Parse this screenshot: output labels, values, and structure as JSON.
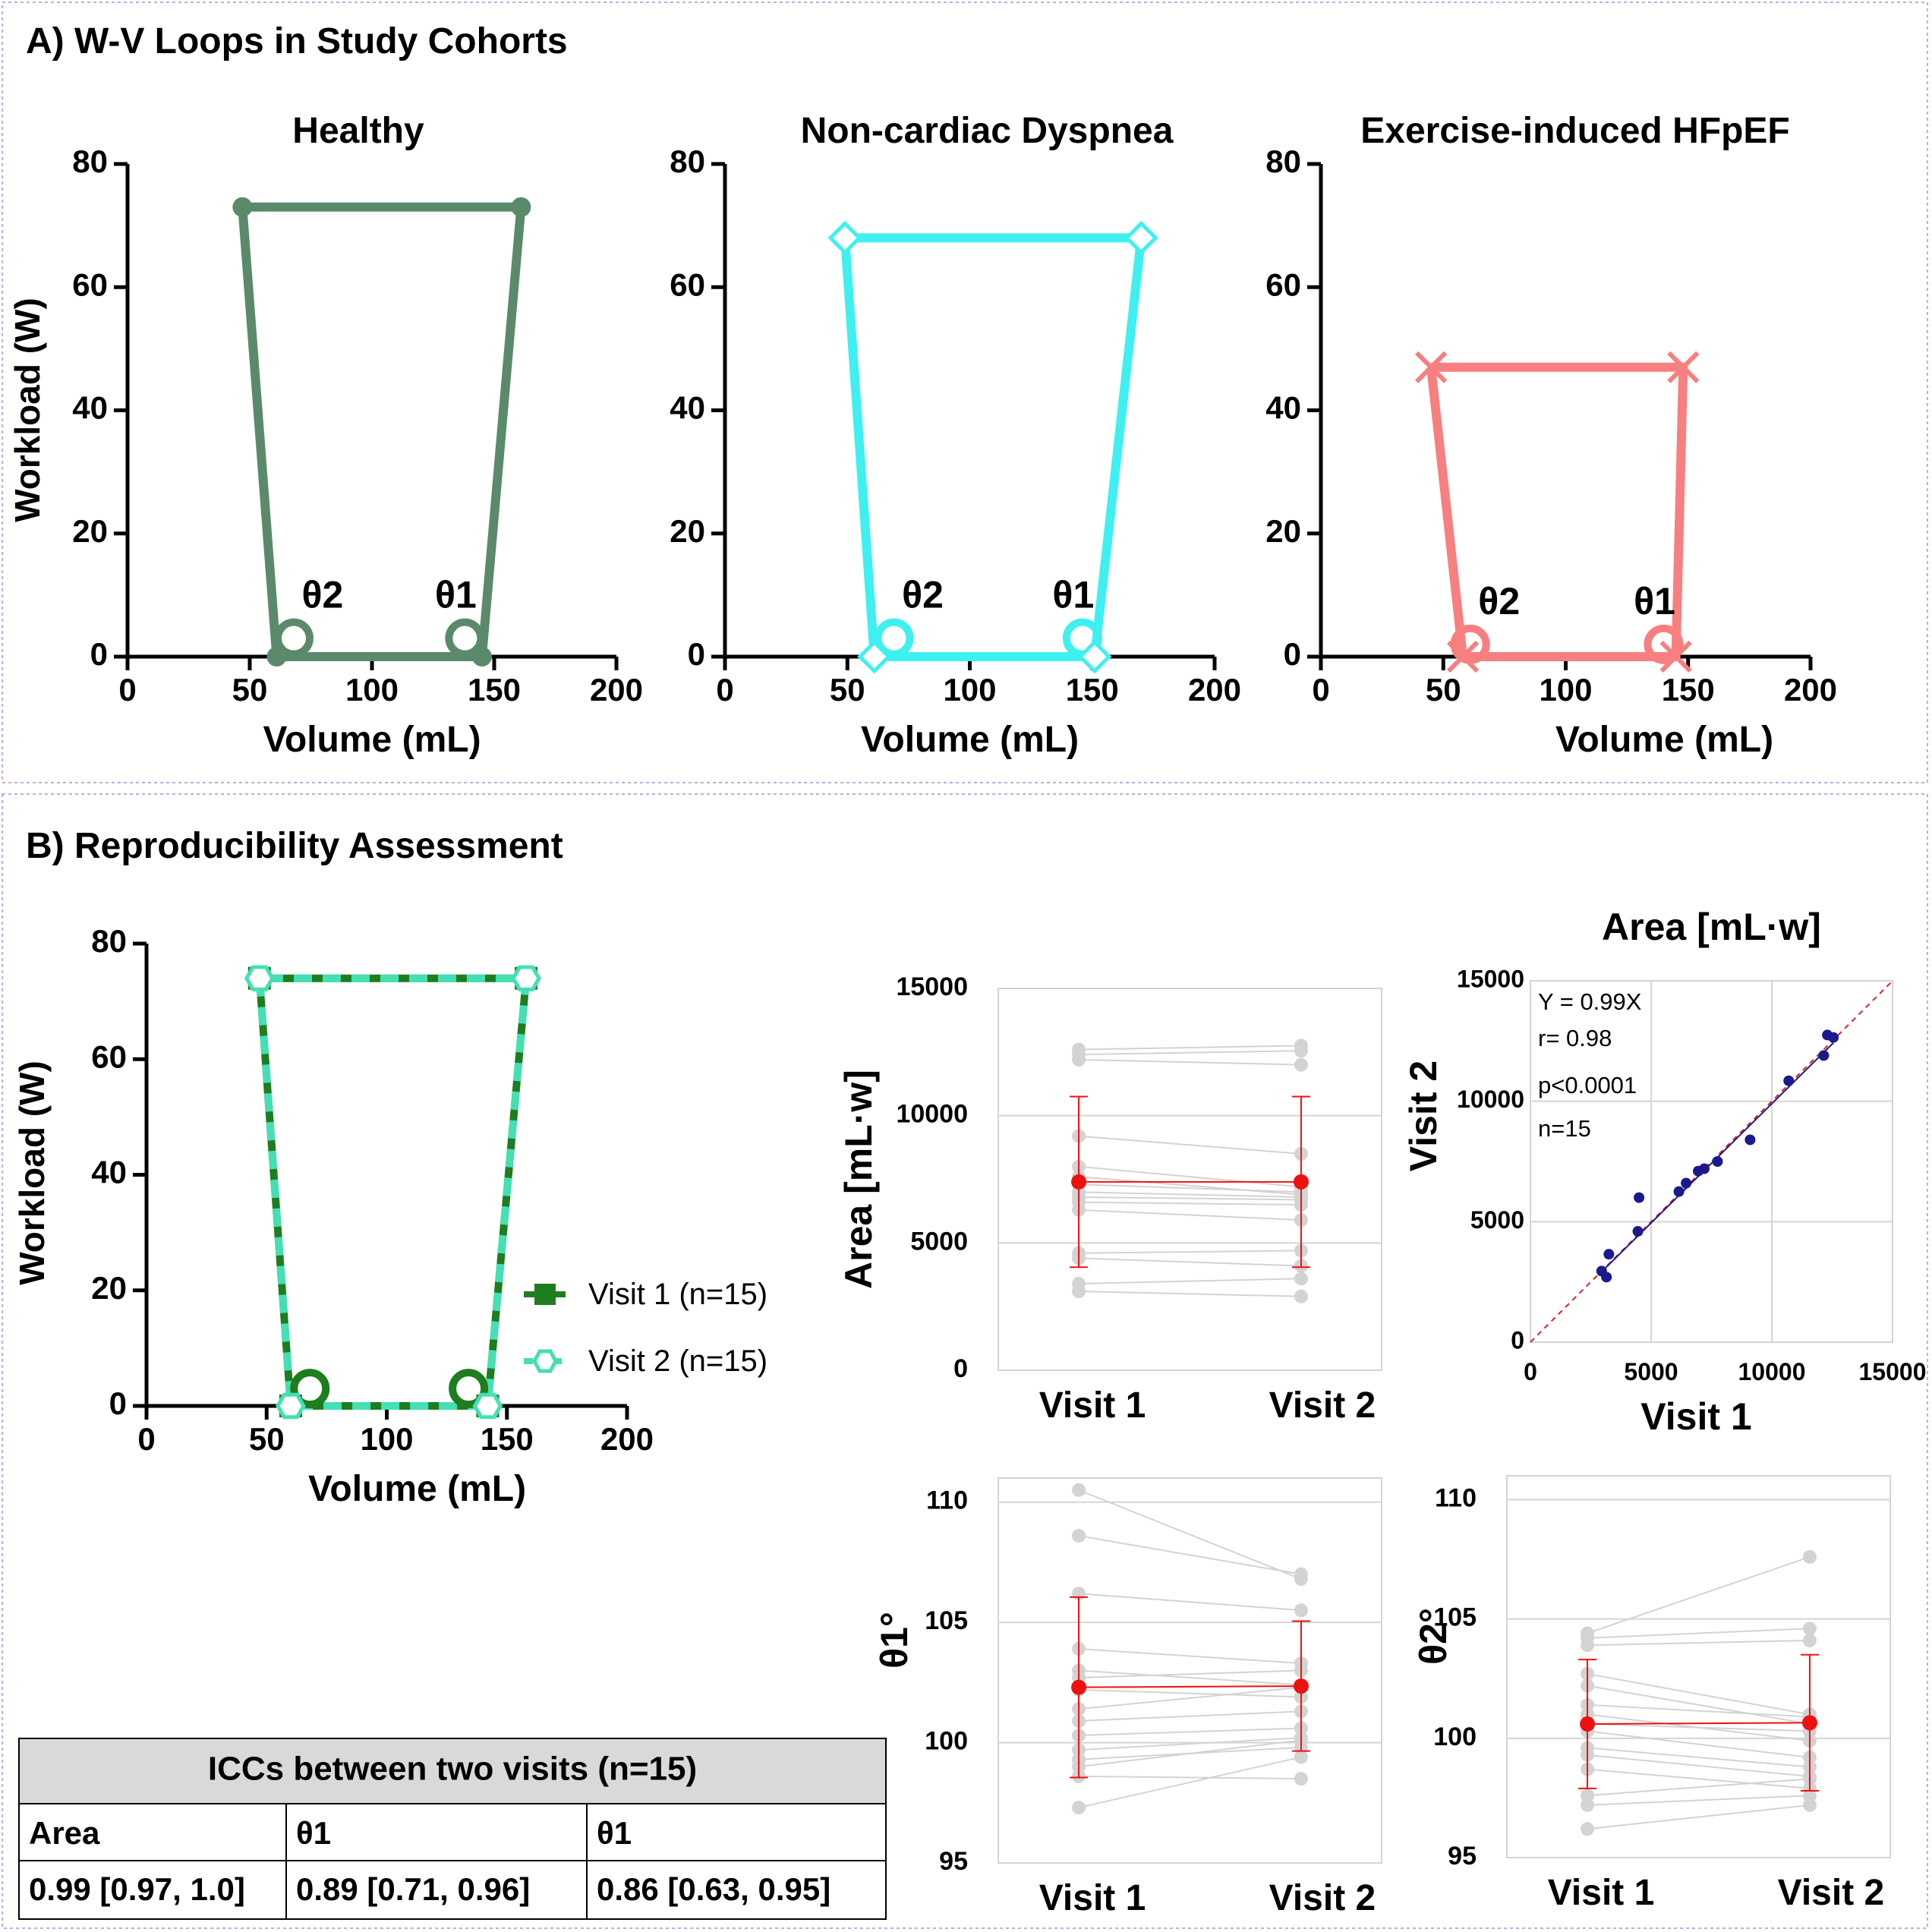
{
  "panel_a": {
    "title": "A) W-V Loops in Study Cohorts",
    "ylabel": "Workload (W)",
    "xlabel": "Volume (mL)",
    "theta1_label": "θ1",
    "theta2_label": "θ2"
  },
  "panel_b": {
    "title": "B) Reproducibility Assessment",
    "ylabel": "Workload (W)",
    "xlabel": "Volume (mL)"
  },
  "icc_table": {
    "title": "ICCs between two visits (n=15)",
    "headers": [
      "Area",
      "θ1",
      "θ1"
    ],
    "values": [
      "0.99 [0.97, 1.0]",
      "0.89 [0.71, 0.96]",
      "0.86 [0.63, 0.95]"
    ]
  },
  "colors": {
    "healthy": "#5b8a6b",
    "noncardiac": "#3ff0f0",
    "hfpef": "#f87f7f",
    "visit1": "#1e7d1e",
    "visit2": "#44e0b4",
    "paired_lines": "#d3d3d3",
    "mean_sd": "#ee1111",
    "scatter_points": "#1a1a8c",
    "identity_line": "#dd2222",
    "grid": "#d4d4d4"
  },
  "chart_data": [
    {
      "id": "loop-healthy",
      "type": "line",
      "title": "Healthy",
      "xlabel": "Volume (mL)",
      "ylabel": "Workload (W)",
      "xlim": [
        0,
        200
      ],
      "ylim": [
        0,
        80
      ],
      "xticks": [
        0,
        50,
        100,
        150,
        200
      ],
      "yticks": [
        0,
        20,
        40,
        60,
        80
      ],
      "marker": "circle",
      "series": [
        {
          "x": [
            47,
            61,
            145,
            161,
            47
          ],
          "y": [
            73,
            0,
            0,
            73,
            73
          ]
        }
      ],
      "angles": [
        {
          "label": "θ2",
          "x": 68,
          "y": 3
        },
        {
          "label": "θ1",
          "x": 138,
          "y": 3
        }
      ]
    },
    {
      "id": "loop-noncardiac",
      "type": "line",
      "title": "Non-cardiac Dyspnea",
      "xlabel": "Volume (mL)",
      "ylabel": "",
      "xlim": [
        0,
        200
      ],
      "ylim": [
        0,
        80
      ],
      "xticks": [
        0,
        50,
        100,
        150,
        200
      ],
      "yticks": [
        0,
        20,
        40,
        60,
        80
      ],
      "marker": "diamond",
      "series": [
        {
          "x": [
            49,
            61,
            151,
            170,
            49
          ],
          "y": [
            68,
            0,
            0,
            68,
            68
          ]
        }
      ],
      "angles": [
        {
          "label": "θ2",
          "x": 69,
          "y": 3
        },
        {
          "label": "θ1",
          "x": 146,
          "y": 3
        }
      ]
    },
    {
      "id": "loop-hfpef",
      "type": "line",
      "title": "Exercise-induced HFpEF",
      "xlabel": "Volume (mL)",
      "ylabel": "",
      "xlim": [
        0,
        200
      ],
      "ylim": [
        0,
        80
      ],
      "xticks": [
        0,
        50,
        100,
        150,
        200
      ],
      "yticks": [
        0,
        20,
        40,
        60,
        80
      ],
      "marker": "x",
      "series": [
        {
          "x": [
            45,
            58,
            145,
            148,
            45
          ],
          "y": [
            47,
            0,
            0,
            47,
            47
          ]
        }
      ],
      "angles": [
        {
          "label": "θ2",
          "x": 61,
          "y": 2
        },
        {
          "label": "θ1",
          "x": 140,
          "y": 2
        }
      ]
    },
    {
      "id": "loop-visits",
      "type": "line",
      "title": "",
      "xlabel": "Volume (mL)",
      "ylabel": "Workload (W)",
      "xlim": [
        0,
        200
      ],
      "ylim": [
        0,
        80
      ],
      "xticks": [
        0,
        50,
        100,
        150,
        200
      ],
      "yticks": [
        0,
        20,
        40,
        60,
        80
      ],
      "legend_position": "right",
      "series": [
        {
          "name": "Visit 1 (n=15)",
          "marker": "square",
          "x": [
            47,
            60,
            142,
            158,
            47
          ],
          "y": [
            74,
            0,
            0,
            74,
            74
          ]
        },
        {
          "name": "Visit 2 (n=15)",
          "marker": "hexagon",
          "x": [
            47,
            60,
            142,
            158,
            47
          ],
          "y": [
            74,
            0,
            0,
            74,
            74
          ]
        }
      ],
      "angles": [
        {
          "x": 68,
          "y": 3
        },
        {
          "x": 134,
          "y": 3
        }
      ]
    },
    {
      "id": "area-paired",
      "type": "scatter",
      "title": "",
      "ylabel": "Area [mL·w]",
      "categories": [
        "Visit 1",
        "Visit 2"
      ],
      "ylim": [
        0,
        15000
      ],
      "yticks": [
        0,
        5000,
        10000,
        15000
      ],
      "pairs": [
        [
          12600,
          12750
        ],
        [
          12400,
          12550
        ],
        [
          12200,
          12000
        ],
        [
          9200,
          8500
        ],
        [
          8000,
          7200
        ],
        [
          7600,
          6900
        ],
        [
          7300,
          7000
        ],
        [
          7000,
          6800
        ],
        [
          6800,
          6700
        ],
        [
          6600,
          6500
        ],
        [
          6300,
          5900
        ],
        [
          4600,
          4700
        ],
        [
          4400,
          4100
        ],
        [
          3400,
          3600
        ],
        [
          3100,
          2900
        ]
      ],
      "mean": [
        7400,
        7400
      ],
      "sd": [
        3350,
        3350
      ]
    },
    {
      "id": "area-correlation",
      "type": "scatter",
      "title": "Area [mL·w]",
      "xlabel": "Visit 1",
      "ylabel": "Visit 2",
      "xlim": [
        0,
        15000
      ],
      "ylim": [
        0,
        15000
      ],
      "xticks": [
        0,
        5000,
        10000,
        15000
      ],
      "yticks": [
        0,
        5000,
        10000,
        15000
      ],
      "annotations": [
        "Y = 0.99X",
        "r= 0.98",
        "p<0.0001",
        "n=15"
      ],
      "slope": 0.99,
      "x": [
        2950,
        3150,
        3250,
        4450,
        4500,
        6150,
        6450,
        6950,
        7200,
        7750,
        9100,
        10700,
        12150,
        12300,
        12550
      ],
      "y": [
        2950,
        2700,
        3650,
        4600,
        6000,
        6250,
        6600,
        7100,
        7200,
        7500,
        8400,
        10850,
        11900,
        12750,
        12650
      ]
    },
    {
      "id": "theta1-paired",
      "type": "scatter",
      "title": "",
      "ylabel": "θ1°",
      "categories": [
        "Visit 1",
        "Visit 2"
      ],
      "ylim": [
        95,
        111
      ],
      "yticks": [
        95,
        100,
        105,
        110
      ],
      "pairs": [
        [
          110.5,
          106.8
        ],
        [
          108.6,
          107.0
        ],
        [
          106.2,
          105.5
        ],
        [
          103.9,
          103.3
        ],
        [
          103.0,
          102.4
        ],
        [
          102.7,
          103.0
        ],
        [
          102.2,
          101.9
        ],
        [
          101.4,
          102.3
        ],
        [
          100.9,
          101.3
        ],
        [
          100.3,
          100.6
        ],
        [
          99.7,
          100.2
        ],
        [
          99.3,
          99.8
        ],
        [
          99.0,
          100.1
        ],
        [
          98.6,
          98.5
        ],
        [
          97.3,
          99.4
        ]
      ],
      "mean": [
        102.3,
        102.35
      ],
      "sd": [
        3.75,
        2.7
      ]
    },
    {
      "id": "theta2-paired",
      "type": "scatter",
      "title": "",
      "ylabel": "θ2°",
      "categories": [
        "Visit 1",
        "Visit 2"
      ],
      "ylim": [
        95,
        111
      ],
      "yticks": [
        95,
        100,
        105,
        110
      ],
      "pairs": [
        [
          104.4,
          107.6
        ],
        [
          104.2,
          104.6
        ],
        [
          103.9,
          104.1
        ],
        [
          102.7,
          101.0
        ],
        [
          102.2,
          100.6
        ],
        [
          101.4,
          100.9
        ],
        [
          101.0,
          99.9
        ],
        [
          100.6,
          100.3
        ],
        [
          100.3,
          99.2
        ],
        [
          99.6,
          98.8
        ],
        [
          99.3,
          98.4
        ],
        [
          98.7,
          97.9
        ],
        [
          97.6,
          98.3
        ],
        [
          97.2,
          97.6
        ],
        [
          96.2,
          97.2
        ]
      ],
      "mean": [
        100.6,
        100.65
      ],
      "sd": [
        2.7,
        2.85
      ]
    }
  ]
}
